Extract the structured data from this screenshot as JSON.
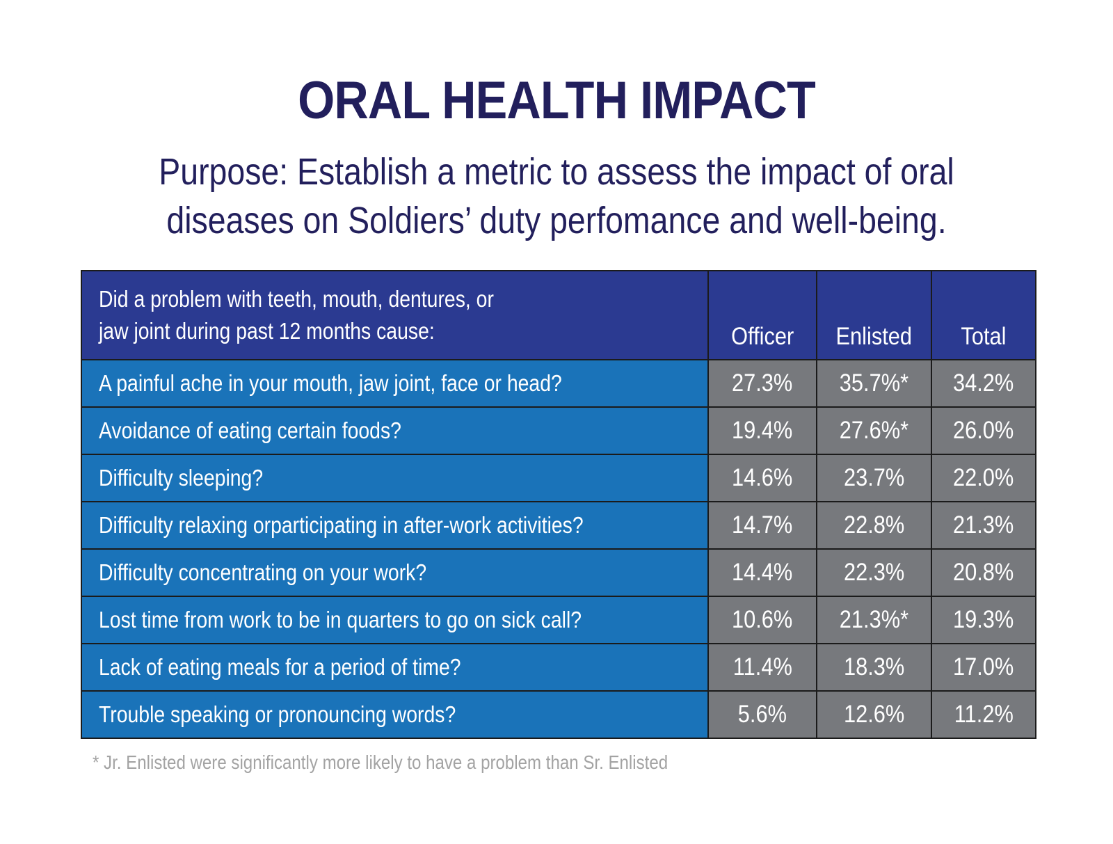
{
  "title": "ORAL HEALTH IMPACT",
  "purpose": {
    "line1": "Purpose: Establish a metric to assess the impact of oral",
    "line2": "diseases on Soldiers’ duty perfomance and well-being."
  },
  "table": {
    "question_header": {
      "line1": "Did a problem with teeth, mouth, dentures, or",
      "line2": "jaw joint during past 12 months cause:"
    },
    "columns": [
      "Officer",
      "Enlisted",
      "Total"
    ],
    "rows": [
      {
        "question": "A painful ache in your mouth, jaw joint, face or head?",
        "officer": "27.3%",
        "enlisted": "35.7%*",
        "total": "34.2%"
      },
      {
        "question": "Avoidance of eating certain foods?",
        "officer": "19.4%",
        "enlisted": "27.6%*",
        "total": "26.0%"
      },
      {
        "question": "Difficulty sleeping?",
        "officer": "14.6%",
        "enlisted": "23.7%",
        "total": "22.0%"
      },
      {
        "question": "Difficulty relaxing orparticipating in after-work activities?",
        "officer": "14.7%",
        "enlisted": "22.8%",
        "total": "21.3%"
      },
      {
        "question": "Difficulty concentrating on your work?",
        "officer": "14.4%",
        "enlisted": "22.3%",
        "total": "20.8%"
      },
      {
        "question": "Lost time from work to be in quarters to go on sick call?",
        "officer": "10.6%",
        "enlisted": "21.3%*",
        "total": "19.3%"
      },
      {
        "question": "Lack of eating meals for a period of time?",
        "officer": "11.4%",
        "enlisted": "18.3%",
        "total": "17.0%"
      },
      {
        "question": "Trouble speaking or pronouncing words?",
        "officer": "5.6%",
        "enlisted": "12.6%",
        "total": "11.2%"
      }
    ]
  },
  "footnote": "* Jr. Enlisted were significantly more likely to have a problem than Sr. Enlisted",
  "colors": {
    "title_text": "#221f5c",
    "header_bg": "#2b3a91",
    "question_bg": "#1a73b9",
    "value_bg": "#77797d",
    "footnote_text": "#a3a3a3"
  }
}
